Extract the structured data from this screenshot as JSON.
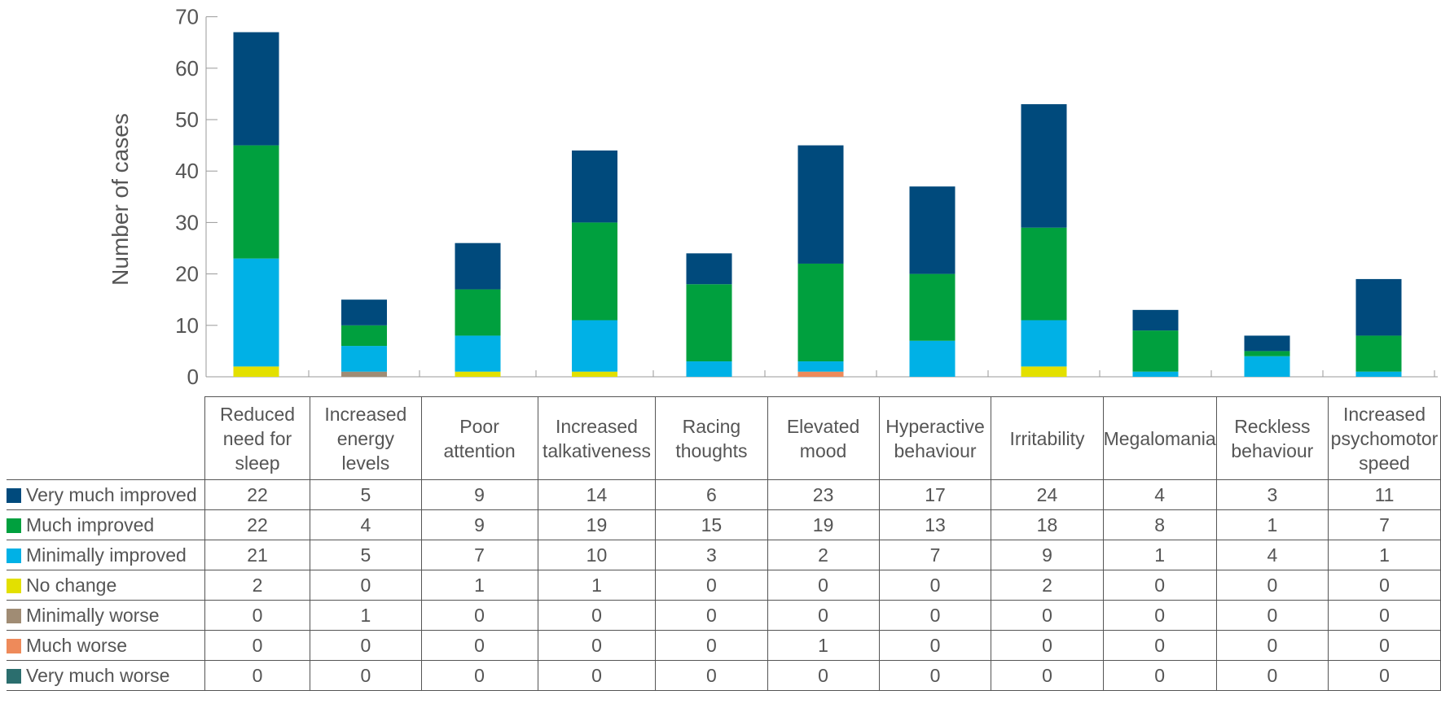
{
  "chart_data": {
    "type": "bar",
    "stacked": true,
    "ylabel": "Number of cases",
    "ylim": [
      0,
      70
    ],
    "yticks": [
      0,
      10,
      20,
      30,
      40,
      50,
      60,
      70
    ],
    "categories": [
      "Reduced need for sleep",
      "Increased energy levels",
      "Poor attention",
      "Increased talkativeness",
      "Racing thoughts",
      "Elevated mood",
      "Hyperactive behaviour",
      "Irritability",
      "Megalomania",
      "Reckless behaviour",
      "Increased psychomotor speed"
    ],
    "category_lines": [
      [
        "Reduced",
        "need for",
        "sleep"
      ],
      [
        "Increased",
        "energy",
        "levels"
      ],
      [
        "Poor",
        "attention"
      ],
      [
        "Increased",
        "talkativeness"
      ],
      [
        "Racing",
        "thoughts"
      ],
      [
        "Elevated",
        "mood"
      ],
      [
        "Hyperactive",
        "behaviour"
      ],
      [
        "Irritability"
      ],
      [
        "Megalomania"
      ],
      [
        "Reckless",
        "behaviour"
      ],
      [
        "Increased",
        "psychomotor",
        "speed"
      ]
    ],
    "series": [
      {
        "name": "Very much improved",
        "color": "#004a7c",
        "values": [
          22,
          5,
          9,
          14,
          6,
          23,
          17,
          24,
          4,
          3,
          11
        ]
      },
      {
        "name": "Much improved",
        "color": "#00a03e",
        "values": [
          22,
          4,
          9,
          19,
          15,
          19,
          13,
          18,
          8,
          1,
          7
        ]
      },
      {
        "name": "Minimally improved",
        "color": "#00b1e6",
        "values": [
          21,
          5,
          7,
          10,
          3,
          2,
          7,
          9,
          1,
          4,
          1
        ]
      },
      {
        "name": "No change",
        "color": "#e3e000",
        "values": [
          2,
          0,
          1,
          1,
          0,
          0,
          0,
          2,
          0,
          0,
          0
        ]
      },
      {
        "name": "Minimally worse",
        "color": "#a08c74",
        "values": [
          0,
          1,
          0,
          0,
          0,
          0,
          0,
          0,
          0,
          0,
          0
        ]
      },
      {
        "name": "Much worse",
        "color": "#ee8a5a",
        "values": [
          0,
          0,
          0,
          0,
          0,
          1,
          0,
          0,
          0,
          0,
          0
        ]
      },
      {
        "name": "Very much worse",
        "color": "#2b6e6e",
        "values": [
          0,
          0,
          0,
          0,
          0,
          0,
          0,
          0,
          0,
          0,
          0
        ]
      }
    ],
    "legend_placement": "table-left",
    "grid": false
  }
}
